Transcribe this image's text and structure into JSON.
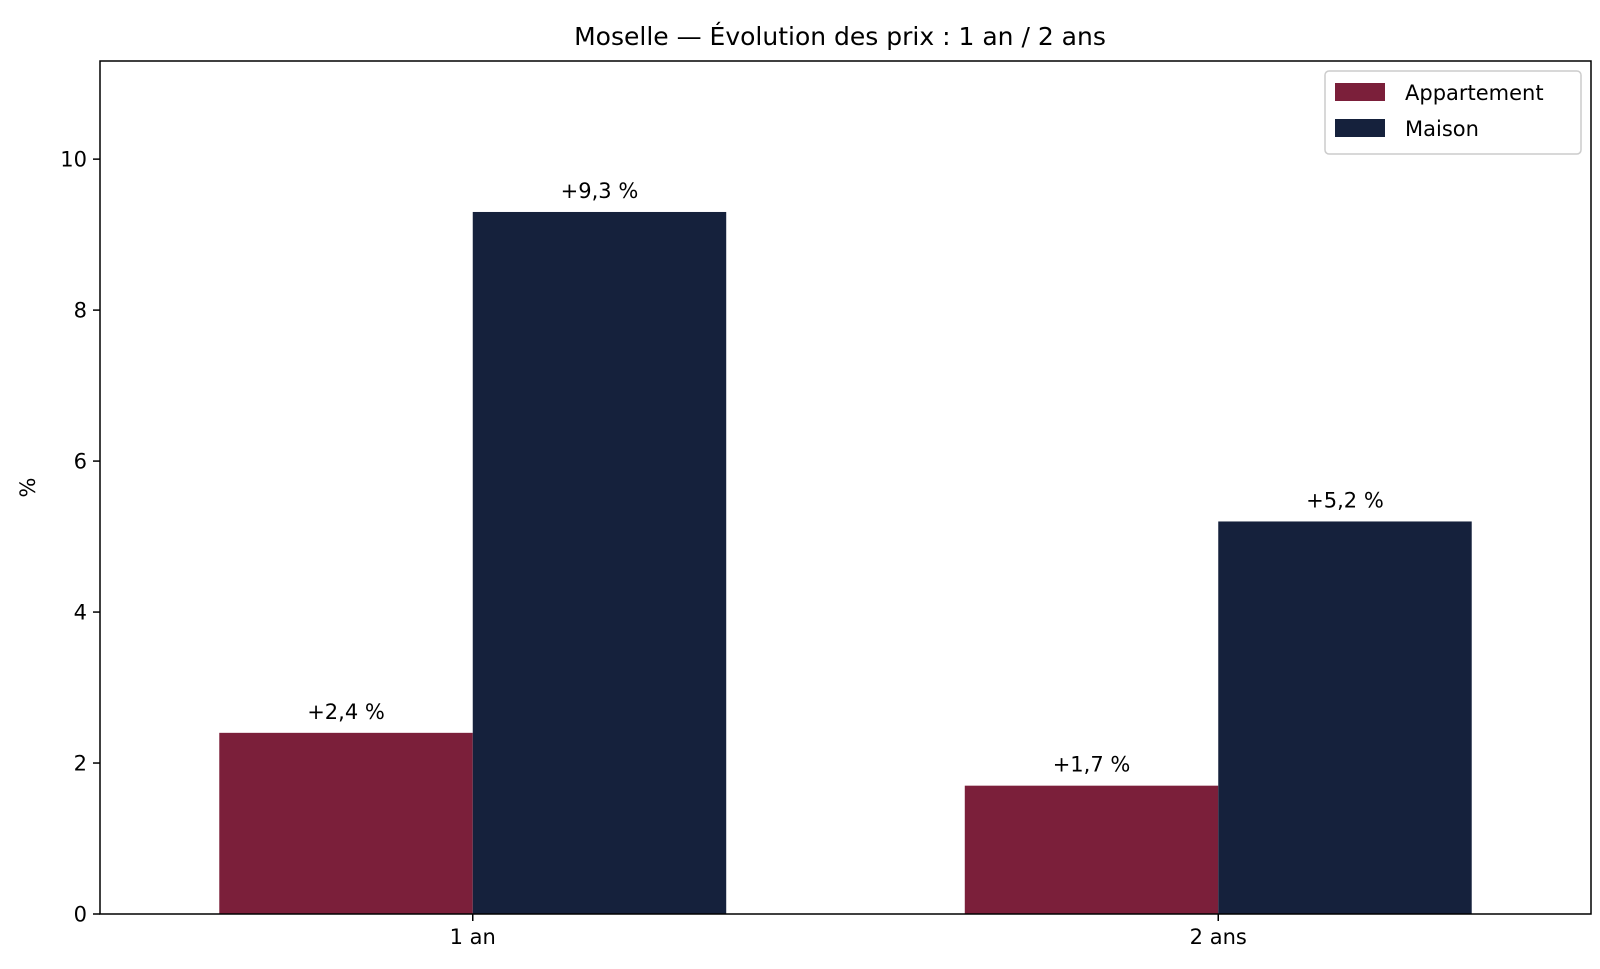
{
  "chart_data": {
    "type": "bar",
    "title": "Moselle — Évolution des prix : 1 an / 2 ans",
    "xlabel": "",
    "ylabel": "%",
    "categories": [
      "1 an",
      "2 ans"
    ],
    "ylim": [
      0,
      11.3
    ],
    "yticks": [
      0,
      2,
      4,
      6,
      8,
      10
    ],
    "grid": false,
    "legend_position": "top-right",
    "series": [
      {
        "name": "Appartement",
        "color": "#7b1f3a",
        "values": [
          2.4,
          1.7
        ],
        "labels": [
          "+2,4 %",
          "+1,7 %"
        ]
      },
      {
        "name": "Maison",
        "color": "#15213c",
        "values": [
          9.3,
          5.2
        ],
        "labels": [
          "+9,3 %",
          "+5,2 %"
        ]
      }
    ]
  }
}
